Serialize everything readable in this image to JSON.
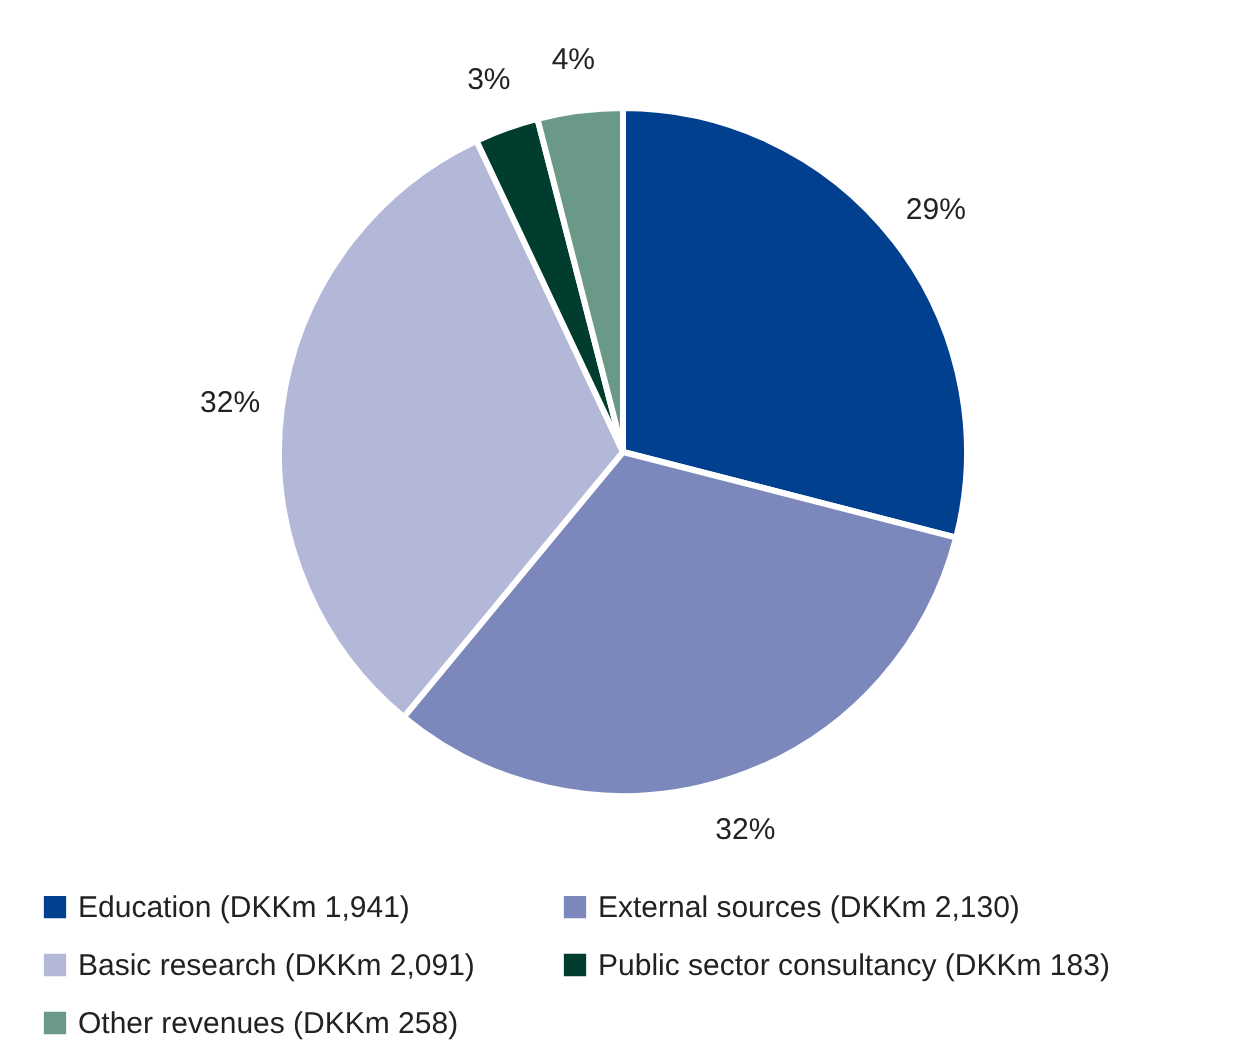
{
  "chart_data": {
    "type": "pie",
    "categories": [
      "Education (DKKm 1,941)",
      "External sources (DKKm 2,130)",
      "Basic research (DKKm 2,091)",
      "Public sector consultancy (DKKm 183)",
      "Other revenues (DKKm 258)"
    ],
    "values": [
      29,
      32,
      32,
      3,
      4
    ],
    "colors": [
      "#00408f",
      "#7c88bb",
      "#b3b8d8",
      "#003d2e",
      "#6a9a87"
    ],
    "value_labels": [
      "29%",
      "32%",
      "32%",
      "3%",
      "4%"
    ],
    "legend": "bottom"
  }
}
